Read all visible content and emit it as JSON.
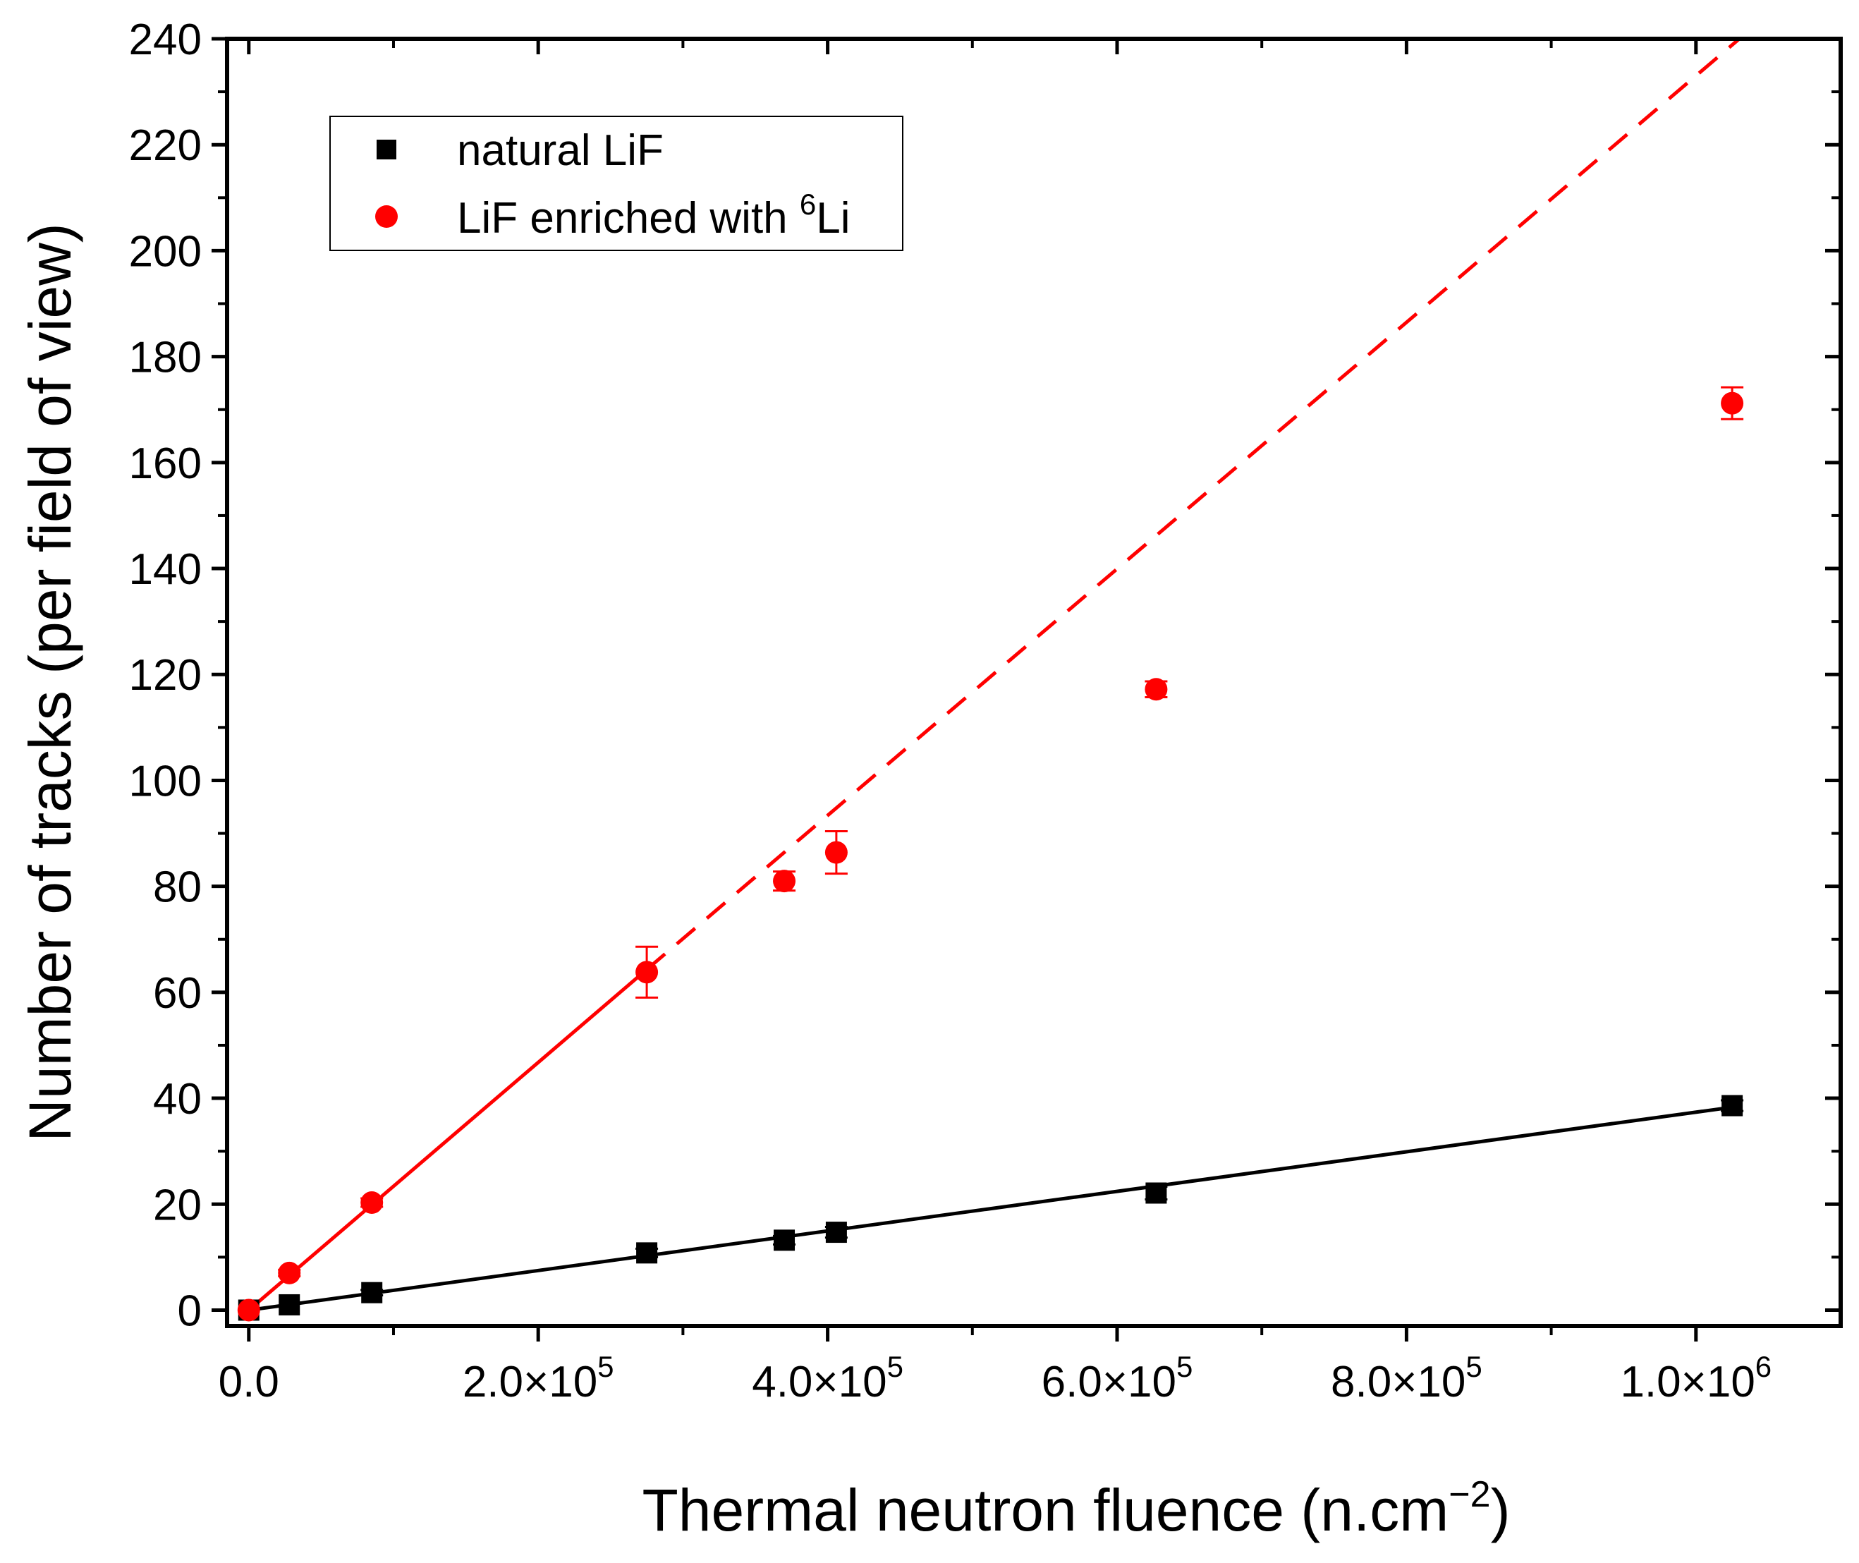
{
  "chart_data": {
    "type": "scatter",
    "title": "",
    "xlabel": "Thermal neutron fluence (n.cm",
    "xlabel_sup": "−2",
    "xlabel_close": ")",
    "ylabel": "Number of tracks (per field of view)",
    "xlim": [
      -15000,
      1100000
    ],
    "ylim": [
      -3,
      240
    ],
    "x_ticks": [
      {
        "value": 0,
        "mantissa": "0.0",
        "exp": ""
      },
      {
        "value": 200000,
        "mantissa": "2.0×10",
        "exp": "5"
      },
      {
        "value": 400000,
        "mantissa": "4.0×10",
        "exp": "5"
      },
      {
        "value": 600000,
        "mantissa": "6.0×10",
        "exp": "5"
      },
      {
        "value": 800000,
        "mantissa": "8.0×10",
        "exp": "5"
      },
      {
        "value": 1000000,
        "mantissa": "1.0×10",
        "exp": "6"
      }
    ],
    "x_minor_step": 100000,
    "y_ticks": [
      0,
      20,
      40,
      60,
      80,
      100,
      120,
      140,
      160,
      180,
      200,
      220,
      240
    ],
    "y_minor_step": 10,
    "legend_position": "top-left",
    "series": [
      {
        "name": "natural LiF",
        "legend_main": "natural LiF",
        "legend_sup": "",
        "legend_after": "",
        "marker": "square",
        "color": "#000000",
        "x": [
          0,
          28000,
          85000,
          275000,
          370000,
          406000,
          627000,
          1025000
        ],
        "y": [
          0,
          1,
          3.3,
          10.8,
          13.2,
          14.7,
          22.1,
          38.6
        ],
        "yerr": [
          0.2,
          0.3,
          0.5,
          0.8,
          0.8,
          1.0,
          1.2,
          1.0
        ],
        "fit_line": {
          "x": [
            0,
            1025000
          ],
          "y": [
            0,
            38.3
          ],
          "dash": false
        }
      },
      {
        "name": "LiF enriched with 6Li",
        "legend_main": "LiF enriched with ",
        "legend_sup": "6",
        "legend_after": "Li",
        "marker": "circle",
        "color": "#ff0000",
        "x": [
          0,
          28000,
          85000,
          275000,
          370000,
          406000,
          627000,
          1025000
        ],
        "y": [
          0,
          7,
          20.3,
          63.8,
          81,
          86.4,
          117.2,
          171.2
        ],
        "yerr": [
          0.2,
          0.6,
          0.8,
          4.8,
          1.8,
          4.0,
          1.5,
          3.0
        ],
        "fit_line": {
          "x": [
            0,
            275000
          ],
          "y": [
            0,
            64.3
          ],
          "dash": false
        },
        "extrapolation": {
          "x": [
            275000,
            1030000
          ],
          "y": [
            64.3,
            240
          ],
          "dash": true
        }
      }
    ]
  }
}
